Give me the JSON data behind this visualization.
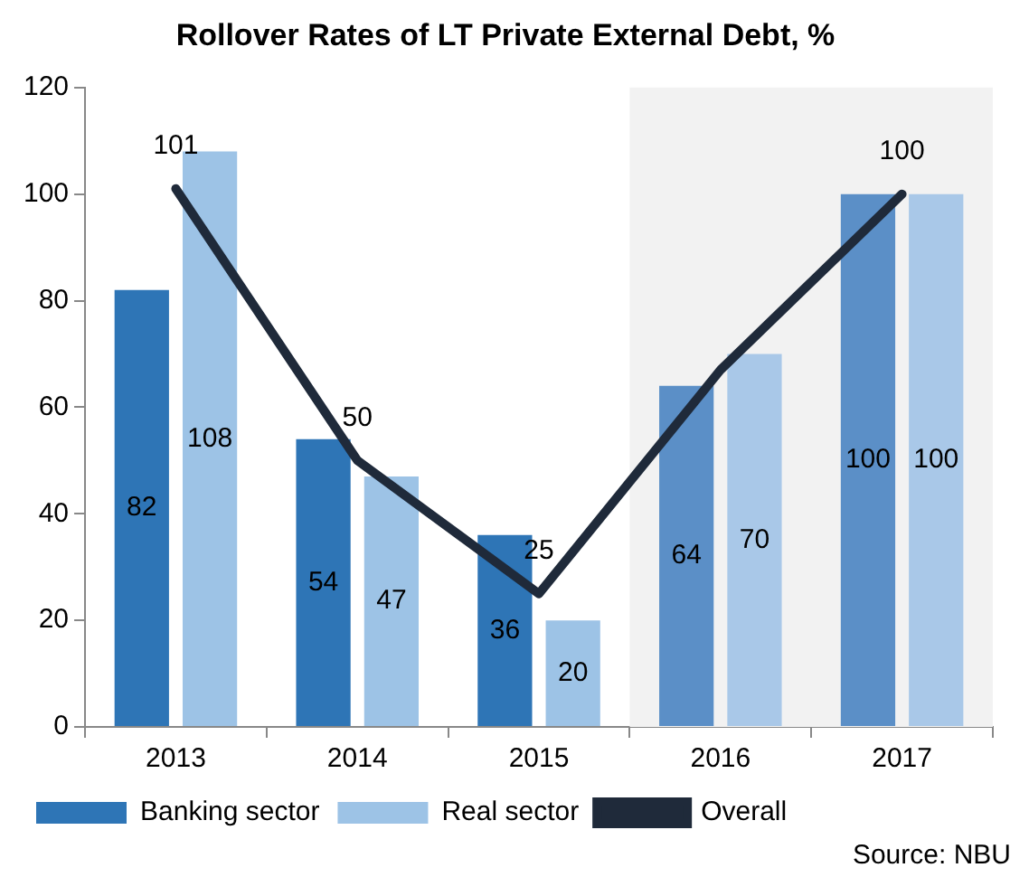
{
  "chart_data": {
    "type": "bar",
    "title": "Rollover Rates of LT Private External Debt, %",
    "categories": [
      "2013",
      "2014",
      "2015",
      "2016",
      "2017"
    ],
    "series": [
      {
        "name": "Banking sector",
        "colors": [
          "#2e75b6",
          "#2e75b6",
          "#2e75b6",
          "#5b8fc7",
          "#5b8fc7"
        ],
        "values": [
          82,
          54,
          36,
          64,
          100
        ],
        "value_labels": [
          "82",
          "54",
          "36",
          "64",
          "100"
        ]
      },
      {
        "name": "Real sector",
        "colors": [
          "#9dc3e6",
          "#9dc3e6",
          "#9dc3e6",
          "#a9c8e8",
          "#a9c8e8"
        ],
        "values": [
          108,
          47,
          20,
          70,
          100
        ],
        "value_labels": [
          "108",
          "47",
          "20",
          "70",
          "100"
        ]
      },
      {
        "name": "Overall",
        "type": "line",
        "color": "#1f2a3a",
        "values": [
          101,
          50,
          25,
          67,
          100
        ],
        "value_labels": [
          "101",
          "50",
          "25",
          null,
          "100"
        ]
      }
    ],
    "ylim": [
      0,
      120
    ],
    "yticks": [
      0,
      20,
      40,
      60,
      80,
      100,
      120
    ],
    "grid": false,
    "legend": "bottom",
    "marker": "none",
    "bands": [
      {
        "axis": "x",
        "from": "2016",
        "to": "2017",
        "color": "#f2f2f2"
      }
    ],
    "annotations": [
      "Source: NBU"
    ]
  }
}
